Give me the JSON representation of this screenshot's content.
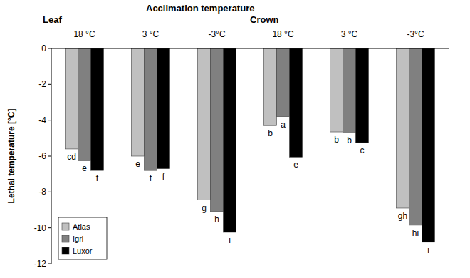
{
  "chart_data": {
    "type": "bar",
    "title": "Acclimation temperature",
    "panels": [
      "Leaf",
      "Crown"
    ],
    "categories": [
      "18 °C",
      "3 °C",
      "-3°C",
      "18 °C",
      "3 °C",
      "-3°C"
    ],
    "series": [
      {
        "name": "Atlas",
        "color": "#c0c0c0",
        "values": [
          -5.6,
          -6.0,
          -8.45,
          -4.3,
          -4.65,
          -8.9
        ],
        "letters": [
          "cd",
          "e",
          "g",
          "b",
          "b",
          "gh"
        ]
      },
      {
        "name": "Igri",
        "color": "#808080",
        "values": [
          -6.25,
          -6.8,
          -9.1,
          -3.8,
          -4.7,
          -9.85
        ],
        "letters": [
          "e",
          "f",
          "h",
          "a",
          "b",
          "hi"
        ]
      },
      {
        "name": "Luxor",
        "color": "#000000",
        "values": [
          -6.8,
          -6.7,
          -10.25,
          -6.05,
          -5.25,
          -10.8
        ],
        "letters": [
          "f",
          "f",
          "i",
          "e",
          "c",
          "i"
        ]
      }
    ],
    "y_label": "Lethal temperature [°C]",
    "ylim": [
      -12,
      0
    ],
    "yticks": [
      0,
      -2,
      -4,
      -6,
      -8,
      -10,
      -12
    ],
    "legend": "lower left",
    "grid": false
  }
}
